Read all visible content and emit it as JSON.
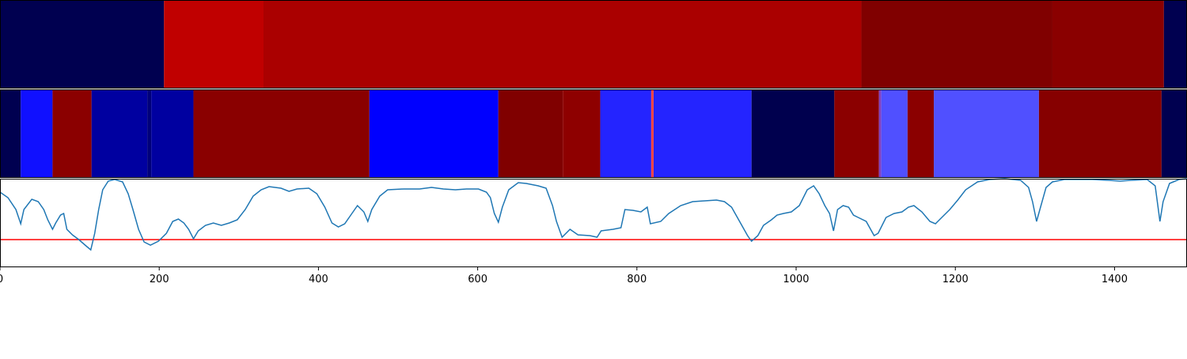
{
  "chart_data": [
    {
      "type": "segments",
      "xlim": [
        0,
        1491
      ],
      "bins": [
        0,
        206,
        331,
        1082,
        1322,
        1462,
        1491
      ],
      "colors": [
        "#000050",
        "#c00000",
        "#aa0000",
        "#800000",
        "#8a0000",
        "#000050"
      ]
    },
    {
      "type": "segments",
      "xlim": [
        0,
        1491
      ],
      "bins": [
        0,
        26,
        66,
        115,
        185,
        190,
        243,
        464,
        626,
        707,
        754,
        818,
        821,
        944,
        1048,
        1104,
        1107,
        1140,
        1173,
        1305,
        1459,
        1491
      ],
      "colors": [
        "#000050",
        "#1010ff",
        "#8b0000",
        "#0000a0",
        "#00007a",
        "#0000a0",
        "#8a0000",
        "#0000ff",
        "#800000",
        "#8e0000",
        "#2424ff",
        "#ff4444",
        "#2424ff",
        "#00004e",
        "#8b0000",
        "#8040c0",
        "#5050ff",
        "#8b0000",
        "#5050ff",
        "#860000",
        "#000050"
      ]
    },
    {
      "type": "line",
      "xlim": [
        0,
        1491
      ],
      "ylim": [
        0,
        112
      ],
      "xticks": [
        0,
        200,
        400,
        600,
        800,
        1000,
        1200,
        1400
      ],
      "color": "#1f77b4",
      "reference_line": {
        "value": 35,
        "color": "#ff0000"
      },
      "x": [
        0,
        10,
        20,
        26,
        30,
        40,
        48,
        55,
        60,
        66,
        70,
        76,
        80,
        84,
        91,
        99,
        107,
        114,
        119,
        124,
        129,
        136,
        144,
        154,
        161,
        167,
        174,
        181,
        189,
        199,
        209,
        217,
        224,
        231,
        237,
        243,
        249,
        258,
        268,
        278,
        288,
        298,
        308,
        318,
        328,
        338,
        353,
        363,
        373,
        388,
        398,
        408,
        417,
        425,
        433,
        442,
        449,
        457,
        462,
        467,
        477,
        487,
        507,
        527,
        542,
        557,
        572,
        586,
        601,
        611,
        616,
        621,
        626,
        631,
        639,
        651,
        661,
        676,
        686,
        694,
        699,
        706,
        716,
        726,
        741,
        750,
        755,
        770,
        780,
        785,
        795,
        805,
        813,
        817,
        830,
        840,
        855,
        870,
        885,
        900,
        910,
        919,
        929,
        939,
        944,
        952,
        959,
        969,
        976,
        984,
        994,
        1004,
        1014,
        1022,
        1029,
        1036,
        1042,
        1047,
        1052,
        1059,
        1066,
        1072,
        1078,
        1088,
        1098,
        1103,
        1113,
        1123,
        1133,
        1141,
        1148,
        1158,
        1168,
        1175,
        1183,
        1193,
        1203,
        1213,
        1228,
        1243,
        1262,
        1282,
        1292,
        1297,
        1302,
        1307,
        1314,
        1322,
        1337,
        1372,
        1392,
        1407,
        1421,
        1441,
        1451,
        1457,
        1461,
        1469,
        1481,
        1491
      ],
      "values": [
        95,
        88,
        73,
        55,
        73,
        86,
        83,
        73,
        60,
        48,
        56,
        66,
        68,
        48,
        41,
        35,
        28,
        22,
        43,
        73,
        98,
        109,
        111,
        108,
        93,
        73,
        48,
        32,
        28,
        33,
        43,
        58,
        61,
        56,
        48,
        36,
        46,
        53,
        56,
        53,
        56,
        60,
        73,
        90,
        98,
        102,
        100,
        96,
        99,
        100,
        93,
        76,
        56,
        51,
        55,
        68,
        78,
        70,
        58,
        73,
        90,
        98,
        99,
        99,
        101,
        99,
        98,
        99,
        99,
        95,
        88,
        68,
        57,
        76,
        98,
        107,
        106,
        103,
        100,
        78,
        58,
        38,
        48,
        41,
        40,
        38,
        46,
        48,
        50,
        73,
        72,
        70,
        76,
        55,
        58,
        68,
        78,
        83,
        84,
        85,
        83,
        76,
        58,
        40,
        33,
        40,
        53,
        60,
        66,
        68,
        70,
        78,
        98,
        103,
        93,
        78,
        68,
        46,
        73,
        78,
        76,
        66,
        63,
        58,
        40,
        43,
        63,
        68,
        70,
        76,
        78,
        70,
        58,
        55,
        63,
        73,
        85,
        98,
        108,
        111,
        112,
        110,
        101,
        83,
        58,
        76,
        101,
        108,
        111,
        111,
        110,
        109,
        110,
        111,
        103,
        58,
        83,
        106,
        111,
        112
      ]
    }
  ]
}
